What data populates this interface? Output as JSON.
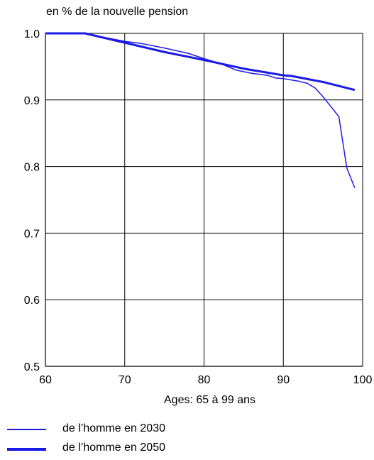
{
  "chart_data": {
    "type": "line",
    "title": "",
    "ylabel": "en % de la nouvelle pension",
    "xlabel": "Ages: 65 à 99 ans",
    "xlim": [
      60,
      100
    ],
    "ylim": [
      0.5,
      1.0
    ],
    "xticks": [
      "60",
      "70",
      "80",
      "90",
      "100"
    ],
    "yticks": [
      "1.0",
      "0.9",
      "0.8",
      "0.7",
      "0.6",
      "0.5"
    ],
    "grid": true,
    "legend_position": "bottom-left",
    "series": [
      {
        "name": "de l’homme en 2030",
        "color": "#1a1ae6",
        "weight": "thin",
        "x": [
          60,
          65,
          67,
          70,
          72,
          75,
          78,
          80,
          82,
          84,
          86,
          88,
          89,
          90,
          91,
          92,
          93,
          94,
          95,
          96,
          97,
          98,
          99
        ],
        "y": [
          1.0,
          1.0,
          0.995,
          0.988,
          0.985,
          0.978,
          0.97,
          0.962,
          0.955,
          0.945,
          0.94,
          0.937,
          0.933,
          0.932,
          0.93,
          0.928,
          0.925,
          0.918,
          0.905,
          0.89,
          0.875,
          0.798,
          0.768
        ]
      },
      {
        "name": "de l’homme en 2050",
        "color": "#1a1ae6",
        "weight": "thick",
        "x": [
          60,
          65,
          70,
          75,
          80,
          85,
          90,
          91,
          95,
          99
        ],
        "y": [
          1.0,
          1.0,
          0.986,
          0.972,
          0.96,
          0.947,
          0.937,
          0.936,
          0.927,
          0.915
        ]
      }
    ]
  }
}
